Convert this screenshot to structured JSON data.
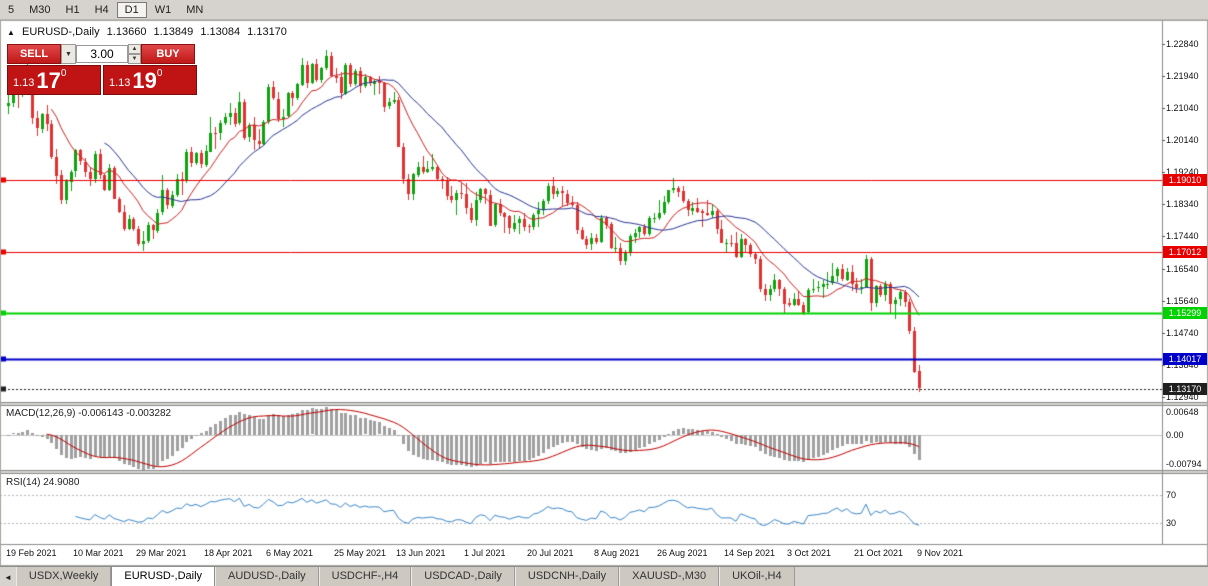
{
  "toolbar": {
    "timeframes": [
      {
        "label": "5",
        "active": false
      },
      {
        "label": "M30",
        "active": false
      },
      {
        "label": "H1",
        "active": false
      },
      {
        "label": "H4",
        "active": false
      },
      {
        "label": "D1",
        "active": true
      },
      {
        "label": "W1",
        "active": false
      },
      {
        "label": "MN",
        "active": false
      }
    ]
  },
  "chart_header": {
    "marker": "▲",
    "title": "EURUSD-,Daily",
    "open": "1.13660",
    "high": "1.13849",
    "low": "1.13084",
    "close": "1.13170"
  },
  "trade_panel": {
    "sell_label": "SELL",
    "buy_label": "BUY",
    "volume": "3.00",
    "sell_price": {
      "main": "1.13",
      "pips": "17",
      "pipette": "0"
    },
    "buy_price": {
      "main": "1.13",
      "pips": "19",
      "pipette": "0"
    }
  },
  "indicators": {
    "macd": {
      "label": "MACD(12,26,9) -0.006143 -0.003282",
      "axis_labels": [
        "0.00648",
        "0.00",
        "-0.00794"
      ],
      "axis_max": 0.0066,
      "axis_min": -0.008,
      "histogram_color": "#a0a0a0",
      "signal_color": "#c00000"
    },
    "rsi": {
      "label": "RSI(14) 24.9080",
      "axis_labels": [
        "70",
        "30"
      ],
      "levels": [
        70,
        30
      ],
      "line_color": "#3a87c8"
    }
  },
  "price_axis": {
    "ticks": [
      "1.22840",
      "1.21940",
      "1.21040",
      "1.20140",
      "1.19240",
      "1.18340",
      "1.17440",
      "1.16540",
      "1.15640",
      "1.14740",
      "1.13840",
      "1.12940"
    ]
  },
  "hlines": [
    {
      "price": 1.1901,
      "label": "1.19010",
      "color": "#e80000",
      "width": 1,
      "style": "solid"
    },
    {
      "price": 1.17012,
      "label": "1.17012",
      "color": "#e80000",
      "width": 1,
      "style": "solid"
    },
    {
      "price": 1.15299,
      "label": "1.15299",
      "color": "#00d200",
      "width": 2,
      "style": "solid"
    },
    {
      "price": 1.14017,
      "label": "1.14017",
      "color": "#0000c8",
      "width": 2,
      "style": "solid"
    },
    {
      "price": 1.1317,
      "label": "1.13170",
      "color": "#202020",
      "width": 1,
      "style": "dotted"
    }
  ],
  "time_axis": {
    "labels": [
      "19 Feb 2021",
      "10 Mar 2021",
      "29 Mar 2021",
      "18 Apr 2021",
      "6 May 2021",
      "25 May 2021",
      "13 Jun 2021",
      "1 Jul 2021",
      "20 Jul 2021",
      "8 Aug 2021",
      "26 Aug 2021",
      "14 Sep 2021",
      "3 Oct 2021",
      "21 Oct 2021",
      "9 Nov 2021"
    ]
  },
  "tabs": {
    "items": [
      {
        "label": "USDX,Weekly",
        "active": false
      },
      {
        "label": "EURUSD-,Daily",
        "active": true
      },
      {
        "label": "AUDUSD-,Daily",
        "active": false
      },
      {
        "label": "USDCHF-,H4",
        "active": false
      },
      {
        "label": "USDCAD-,Daily",
        "active": false
      },
      {
        "label": "USDCNH-,Daily",
        "active": false
      },
      {
        "label": "XAUUSD-,M30",
        "active": false
      },
      {
        "label": "UKOil-,H4",
        "active": false
      }
    ]
  },
  "chart_data": {
    "type": "candlestick",
    "title": "EURUSD-,Daily",
    "symbol": "EURUSD-",
    "timeframe": "Daily",
    "ylim": [
      1.128,
      1.2345
    ],
    "up_color": "#11a211",
    "down_color": "#e03232",
    "ma_overlays": [
      {
        "type": "sma",
        "period": 10,
        "color": "#cc2222"
      },
      {
        "type": "sma",
        "period": 21,
        "color": "#283593"
      }
    ],
    "macd_params": {
      "fast": 12,
      "slow": 26,
      "signal": 9
    },
    "rsi_params": {
      "period": 14
    },
    "candles": [
      [
        1.211,
        1.2145,
        1.2088,
        1.2118
      ],
      [
        1.2118,
        1.2169,
        1.2108,
        1.216
      ],
      [
        1.216,
        1.2175,
        1.2105,
        1.215
      ],
      [
        1.215,
        1.217,
        1.2135,
        1.2165
      ],
      [
        1.2165,
        1.2243,
        1.2155,
        1.2176
      ],
      [
        1.2176,
        1.2184,
        1.206,
        1.2075
      ],
      [
        1.2075,
        1.2095,
        1.2025,
        1.2047
      ],
      [
        1.2047,
        1.209,
        1.2035,
        1.2088
      ],
      [
        1.2088,
        1.2113,
        1.204,
        1.206
      ],
      [
        1.206,
        1.207,
        1.196,
        1.1968
      ],
      [
        1.1968,
        1.199,
        1.1892,
        1.1915
      ],
      [
        1.1915,
        1.193,
        1.1836,
        1.1845
      ],
      [
        1.1845,
        1.1905,
        1.1835,
        1.1899
      ],
      [
        1.1899,
        1.193,
        1.187,
        1.1926
      ],
      [
        1.1926,
        1.199,
        1.191,
        1.1985
      ],
      [
        1.1985,
        1.199,
        1.1945,
        1.1953
      ],
      [
        1.1953,
        1.1965,
        1.191,
        1.1925
      ],
      [
        1.1925,
        1.194,
        1.1885,
        1.1905
      ],
      [
        1.1905,
        1.1983,
        1.1895,
        1.1976
      ],
      [
        1.1976,
        1.1989,
        1.1905,
        1.1917
      ],
      [
        1.1917,
        1.192,
        1.187,
        1.1874
      ],
      [
        1.1874,
        1.1947,
        1.187,
        1.1936
      ],
      [
        1.1936,
        1.1942,
        1.1849,
        1.185
      ],
      [
        1.185,
        1.1855,
        1.1809,
        1.1813
      ],
      [
        1.1813,
        1.1832,
        1.176,
        1.1765
      ],
      [
        1.1765,
        1.1805,
        1.1762,
        1.1793
      ],
      [
        1.1793,
        1.1798,
        1.1758,
        1.1764
      ],
      [
        1.1764,
        1.1774,
        1.1716,
        1.1722
      ],
      [
        1.1722,
        1.176,
        1.1704,
        1.173
      ],
      [
        1.173,
        1.1785,
        1.1727,
        1.1775
      ],
      [
        1.1775,
        1.178,
        1.1738,
        1.176
      ],
      [
        1.176,
        1.182,
        1.1755,
        1.181
      ],
      [
        1.181,
        1.1915,
        1.1805,
        1.1873
      ],
      [
        1.1873,
        1.188,
        1.1821,
        1.183
      ],
      [
        1.183,
        1.187,
        1.1825,
        1.186
      ],
      [
        1.186,
        1.192,
        1.1855,
        1.1905
      ],
      [
        1.1905,
        1.1925,
        1.186,
        1.1899
      ],
      [
        1.1899,
        1.1988,
        1.1895,
        1.198
      ],
      [
        1.198,
        1.1995,
        1.194,
        1.195
      ],
      [
        1.195,
        1.198,
        1.1945,
        1.1977
      ],
      [
        1.1977,
        1.1985,
        1.1936,
        1.1945
      ],
      [
        1.1945,
        1.2,
        1.194,
        1.1983
      ],
      [
        1.1983,
        1.208,
        1.198,
        1.2035
      ],
      [
        1.2035,
        1.205,
        1.199,
        1.2033
      ],
      [
        1.2033,
        1.207,
        1.2015,
        1.2062
      ],
      [
        1.2062,
        1.209,
        1.2055,
        1.208
      ],
      [
        1.208,
        1.2117,
        1.2056,
        1.209
      ],
      [
        1.209,
        1.2105,
        1.2052,
        1.206
      ],
      [
        1.206,
        1.215,
        1.2055,
        1.212
      ],
      [
        1.212,
        1.2128,
        1.2014,
        1.202
      ],
      [
        1.202,
        1.2062,
        1.201,
        1.2055
      ],
      [
        1.2055,
        1.208,
        1.1986,
        1.2012
      ],
      [
        1.2012,
        1.2046,
        1.199,
        1.2004
      ],
      [
        1.2004,
        1.207,
        1.2,
        1.2065
      ],
      [
        1.2065,
        1.217,
        1.206,
        1.2162
      ],
      [
        1.2162,
        1.218,
        1.2125,
        1.213
      ],
      [
        1.213,
        1.215,
        1.2065,
        1.2074
      ],
      [
        1.2074,
        1.21,
        1.2051,
        1.208
      ],
      [
        1.208,
        1.215,
        1.2075,
        1.2145
      ],
      [
        1.2145,
        1.2152,
        1.211,
        1.2131
      ],
      [
        1.2131,
        1.2174,
        1.2127,
        1.217
      ],
      [
        1.217,
        1.2245,
        1.2165,
        1.2225
      ],
      [
        1.2225,
        1.2235,
        1.216,
        1.2175
      ],
      [
        1.2175,
        1.223,
        1.217,
        1.2227
      ],
      [
        1.2227,
        1.224,
        1.2178,
        1.2182
      ],
      [
        1.2182,
        1.222,
        1.2175,
        1.2215
      ],
      [
        1.2215,
        1.2266,
        1.221,
        1.225
      ],
      [
        1.225,
        1.226,
        1.219,
        1.2195
      ],
      [
        1.2195,
        1.2215,
        1.2175,
        1.219
      ],
      [
        1.219,
        1.2205,
        1.213,
        1.2145
      ],
      [
        1.2145,
        1.223,
        1.214,
        1.2225
      ],
      [
        1.2225,
        1.223,
        1.2162,
        1.2172
      ],
      [
        1.2172,
        1.2212,
        1.2165,
        1.2208
      ],
      [
        1.2208,
        1.2218,
        1.2145,
        1.2166
      ],
      [
        1.2166,
        1.22,
        1.216,
        1.219
      ],
      [
        1.219,
        1.2195,
        1.2165,
        1.2172
      ],
      [
        1.2172,
        1.2185,
        1.214,
        1.218
      ],
      [
        1.218,
        1.2195,
        1.2143,
        1.2174
      ],
      [
        1.2174,
        1.2178,
        1.2093,
        1.2108
      ],
      [
        1.2108,
        1.2131,
        1.21,
        1.212
      ],
      [
        1.212,
        1.2148,
        1.2115,
        1.2127
      ],
      [
        1.2127,
        1.2135,
        1.1994,
        1.1995
      ],
      [
        1.1995,
        1.2007,
        1.1891,
        1.1906
      ],
      [
        1.1906,
        1.192,
        1.1847,
        1.1863
      ],
      [
        1.1863,
        1.1921,
        1.1845,
        1.1918
      ],
      [
        1.1918,
        1.1953,
        1.191,
        1.194
      ],
      [
        1.194,
        1.197,
        1.1918,
        1.1925
      ],
      [
        1.1925,
        1.1956,
        1.1922,
        1.1933
      ],
      [
        1.1933,
        1.1975,
        1.1928,
        1.1938
      ],
      [
        1.1938,
        1.1945,
        1.1902,
        1.1905
      ],
      [
        1.1905,
        1.1912,
        1.1878,
        1.1898
      ],
      [
        1.1898,
        1.191,
        1.1845,
        1.1856
      ],
      [
        1.1856,
        1.1884,
        1.1837,
        1.1845
      ],
      [
        1.1845,
        1.1875,
        1.1805,
        1.1865
      ],
      [
        1.1865,
        1.1895,
        1.185,
        1.1862
      ],
      [
        1.1862,
        1.1895,
        1.1806,
        1.1823
      ],
      [
        1.1823,
        1.1838,
        1.1782,
        1.179
      ],
      [
        1.179,
        1.1868,
        1.1772,
        1.1845
      ],
      [
        1.1845,
        1.188,
        1.1837,
        1.1876
      ],
      [
        1.1876,
        1.188,
        1.1836,
        1.1861
      ],
      [
        1.1861,
        1.1875,
        1.1772,
        1.1775
      ],
      [
        1.1775,
        1.1838,
        1.177,
        1.1835
      ],
      [
        1.1835,
        1.185,
        1.18,
        1.181
      ],
      [
        1.181,
        1.1812,
        1.1755,
        1.18
      ],
      [
        1.18,
        1.1805,
        1.1752,
        1.1765
      ],
      [
        1.1765,
        1.1805,
        1.1756,
        1.1782
      ],
      [
        1.1782,
        1.18,
        1.1752,
        1.1794
      ],
      [
        1.1794,
        1.181,
        1.1758,
        1.1772
      ],
      [
        1.1772,
        1.178,
        1.1755,
        1.177
      ],
      [
        1.177,
        1.181,
        1.1763,
        1.1805
      ],
      [
        1.1805,
        1.184,
        1.177,
        1.1817
      ],
      [
        1.1817,
        1.185,
        1.1805,
        1.1843
      ],
      [
        1.1843,
        1.1894,
        1.1835,
        1.1885
      ],
      [
        1.1885,
        1.191,
        1.185,
        1.1862
      ],
      [
        1.1862,
        1.188,
        1.1855,
        1.187
      ],
      [
        1.187,
        1.1885,
        1.183,
        1.1863
      ],
      [
        1.1863,
        1.1875,
        1.183,
        1.1838
      ],
      [
        1.1838,
        1.1858,
        1.1827,
        1.1832
      ],
      [
        1.1832,
        1.184,
        1.1752,
        1.1762
      ],
      [
        1.1762,
        1.177,
        1.1735,
        1.1738
      ],
      [
        1.1738,
        1.1745,
        1.171,
        1.1722
      ],
      [
        1.1722,
        1.1755,
        1.1705,
        1.174
      ],
      [
        1.174,
        1.1752,
        1.1722,
        1.173
      ],
      [
        1.173,
        1.1805,
        1.1727,
        1.1797
      ],
      [
        1.1797,
        1.18,
        1.1765,
        1.1778
      ],
      [
        1.1778,
        1.1785,
        1.171,
        1.171
      ],
      [
        1.171,
        1.1742,
        1.17,
        1.1712
      ],
      [
        1.1712,
        1.1725,
        1.1665,
        1.1675
      ],
      [
        1.1675,
        1.1705,
        1.1664,
        1.1697
      ],
      [
        1.1697,
        1.175,
        1.169,
        1.1745
      ],
      [
        1.1745,
        1.1765,
        1.1727,
        1.1755
      ],
      [
        1.1755,
        1.1774,
        1.174,
        1.177
      ],
      [
        1.177,
        1.1779,
        1.1745,
        1.175
      ],
      [
        1.175,
        1.1802,
        1.1745,
        1.1795
      ],
      [
        1.1795,
        1.181,
        1.1782,
        1.1796
      ],
      [
        1.1796,
        1.1845,
        1.179,
        1.181
      ],
      [
        1.181,
        1.1857,
        1.1805,
        1.184
      ],
      [
        1.184,
        1.1875,
        1.1835,
        1.1873
      ],
      [
        1.1873,
        1.1909,
        1.1865,
        1.188
      ],
      [
        1.188,
        1.1885,
        1.1855,
        1.187
      ],
      [
        1.187,
        1.1885,
        1.1838,
        1.1842
      ],
      [
        1.1842,
        1.185,
        1.1802,
        1.1817
      ],
      [
        1.1817,
        1.1841,
        1.1805,
        1.1825
      ],
      [
        1.1825,
        1.1852,
        1.181,
        1.1815
      ],
      [
        1.1815,
        1.182,
        1.177,
        1.181
      ],
      [
        1.181,
        1.1846,
        1.18,
        1.1805
      ],
      [
        1.1805,
        1.1832,
        1.1795,
        1.1815
      ],
      [
        1.1815,
        1.182,
        1.175,
        1.1765
      ],
      [
        1.1765,
        1.179,
        1.1725,
        1.1725
      ],
      [
        1.1725,
        1.1738,
        1.17,
        1.1726
      ],
      [
        1.1726,
        1.1749,
        1.1715,
        1.1725
      ],
      [
        1.1725,
        1.1756,
        1.1684,
        1.1687
      ],
      [
        1.1687,
        1.175,
        1.1683,
        1.1738
      ],
      [
        1.1738,
        1.174,
        1.1701,
        1.172
      ],
      [
        1.172,
        1.1726,
        1.1685,
        1.1695
      ],
      [
        1.1695,
        1.17,
        1.1668,
        1.1682
      ],
      [
        1.1682,
        1.169,
        1.1589,
        1.1598
      ],
      [
        1.1598,
        1.161,
        1.1563,
        1.158
      ],
      [
        1.158,
        1.1608,
        1.1562,
        1.1597
      ],
      [
        1.1597,
        1.164,
        1.1587,
        1.1622
      ],
      [
        1.1622,
        1.1625,
        1.1576,
        1.1598
      ],
      [
        1.1598,
        1.1602,
        1.1529,
        1.1557
      ],
      [
        1.1557,
        1.1572,
        1.1546,
        1.1552
      ],
      [
        1.1552,
        1.1586,
        1.1548,
        1.157
      ],
      [
        1.157,
        1.159,
        1.155,
        1.1553
      ],
      [
        1.1553,
        1.156,
        1.1524,
        1.153
      ],
      [
        1.153,
        1.16,
        1.1528,
        1.1593
      ],
      [
        1.1593,
        1.1624,
        1.1585,
        1.1597
      ],
      [
        1.1597,
        1.1618,
        1.1588,
        1.1601
      ],
      [
        1.1601,
        1.1622,
        1.1572,
        1.161
      ],
      [
        1.161,
        1.1645,
        1.1596,
        1.1612
      ],
      [
        1.1612,
        1.167,
        1.1608,
        1.1633
      ],
      [
        1.1633,
        1.1658,
        1.1617,
        1.1652
      ],
      [
        1.1652,
        1.1667,
        1.1618,
        1.1623
      ],
      [
        1.1623,
        1.1656,
        1.162,
        1.1645
      ],
      [
        1.1645,
        1.1665,
        1.1591,
        1.161
      ],
      [
        1.161,
        1.1627,
        1.1585,
        1.1598
      ],
      [
        1.1598,
        1.1626,
        1.1583,
        1.1602
      ],
      [
        1.1602,
        1.1692,
        1.16,
        1.1682
      ],
      [
        1.1682,
        1.1686,
        1.1535,
        1.1558
      ],
      [
        1.1558,
        1.1609,
        1.1545,
        1.1605
      ],
      [
        1.1605,
        1.1612,
        1.1575,
        1.158
      ],
      [
        1.158,
        1.162,
        1.1562,
        1.1612
      ],
      [
        1.1612,
        1.1617,
        1.1527,
        1.1556
      ],
      [
        1.1556,
        1.1573,
        1.1513,
        1.1567
      ],
      [
        1.1567,
        1.1593,
        1.155,
        1.1588
      ],
      [
        1.1588,
        1.1595,
        1.1545,
        1.156
      ],
      [
        1.156,
        1.1568,
        1.147,
        1.148
      ],
      [
        1.148,
        1.149,
        1.136,
        1.1366
      ],
      [
        1.1366,
        1.1385,
        1.1308,
        1.1317
      ]
    ]
  }
}
